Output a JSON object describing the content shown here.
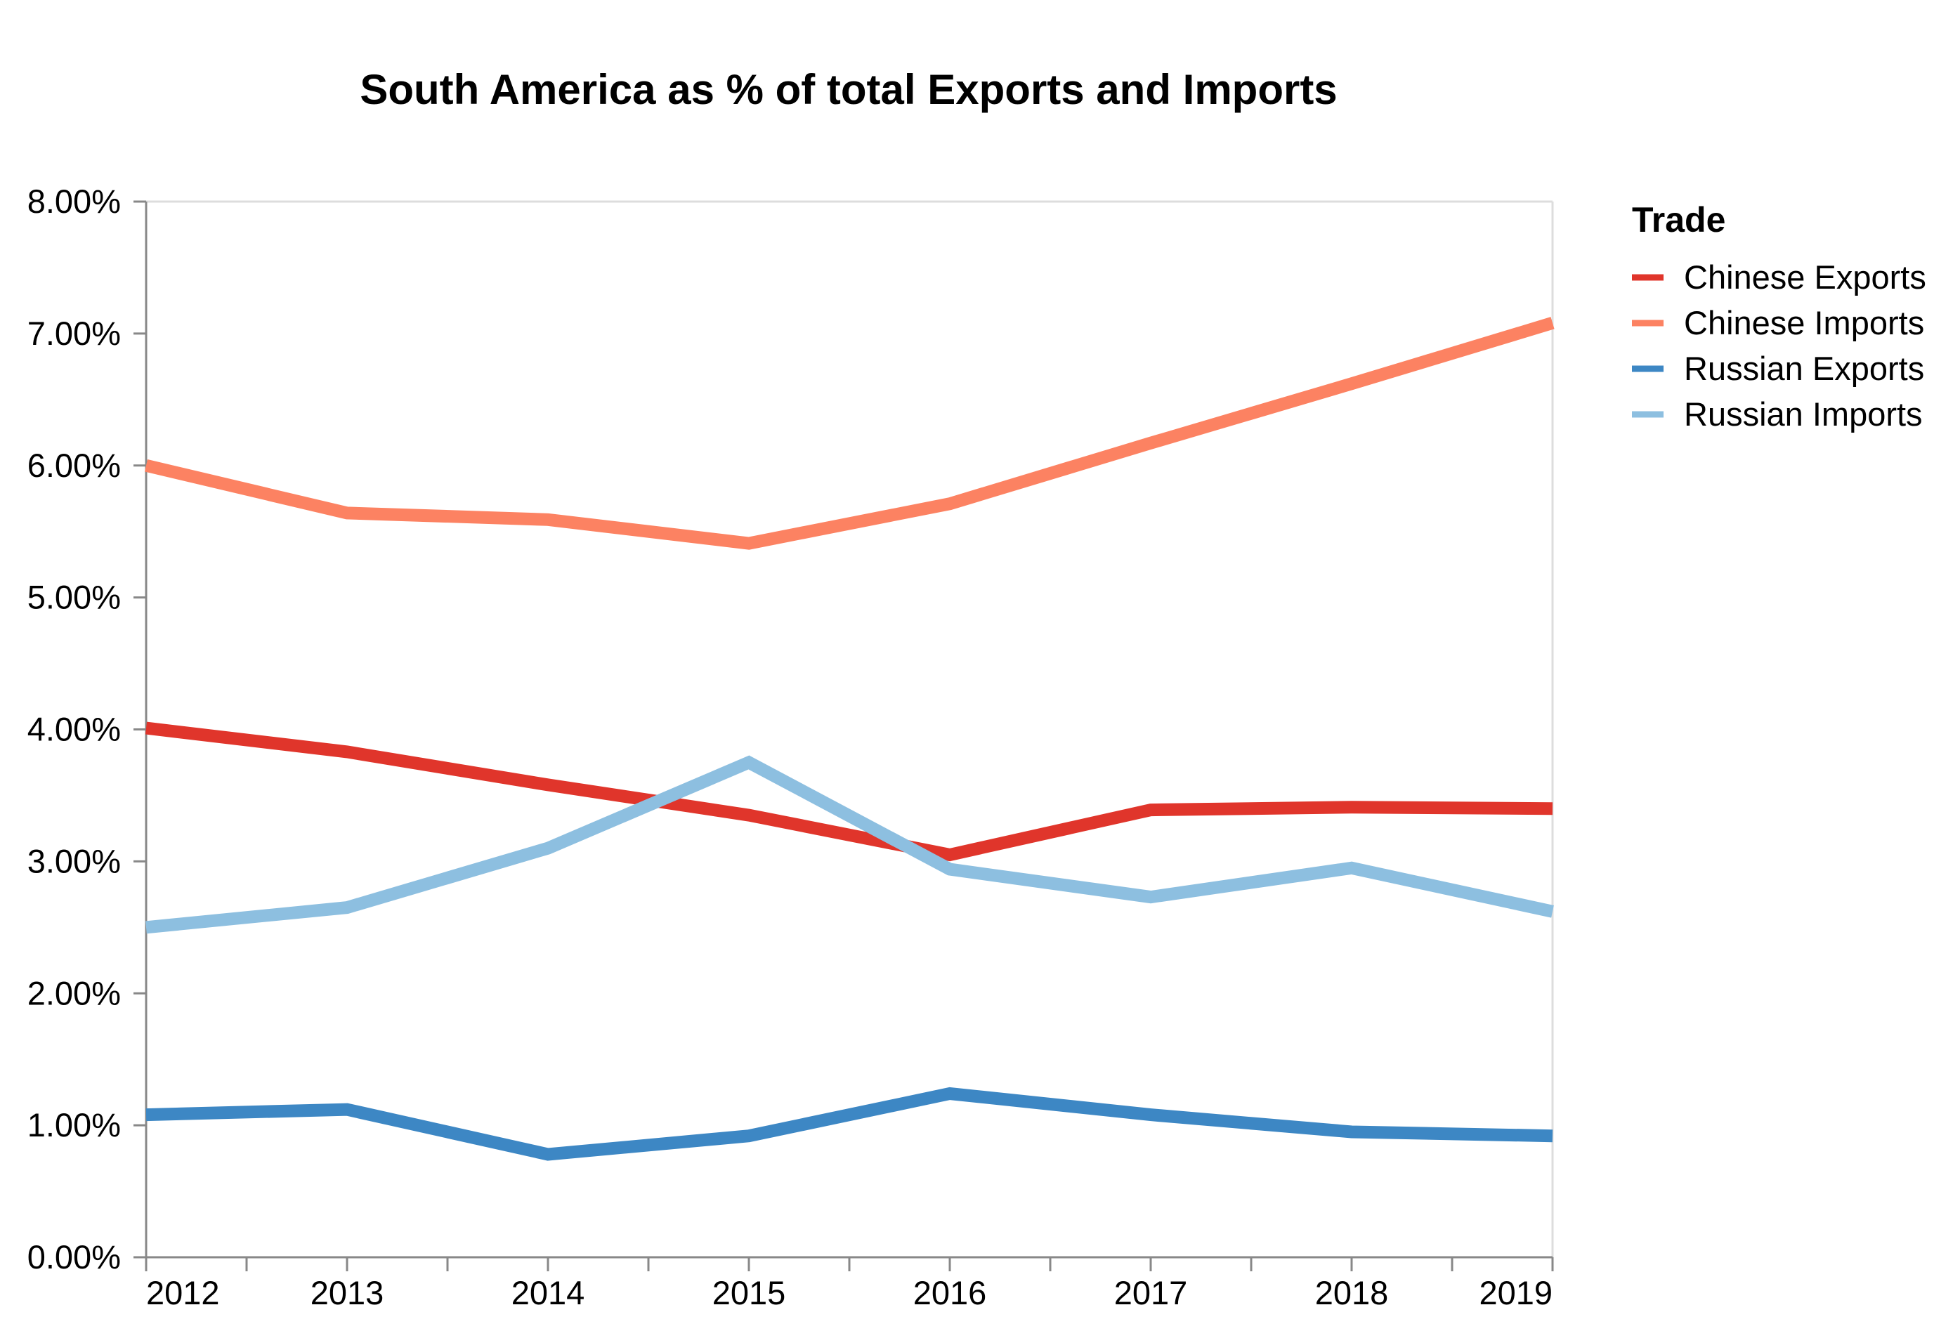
{
  "chart_data": {
    "type": "line",
    "title": "South America as % of total Exports and Imports",
    "x": [
      "2012",
      "2013",
      "2014",
      "2015",
      "2016",
      "2017",
      "2018",
      "2019"
    ],
    "ylim": [
      0,
      8
    ],
    "y_ticks": [
      "0.00%",
      "1.00%",
      "2.00%",
      "3.00%",
      "4.00%",
      "5.00%",
      "6.00%",
      "7.00%",
      "8.00%"
    ],
    "y_unit": "%",
    "grid": false,
    "legend_title": "Trade",
    "legend_position": "right",
    "series": [
      {
        "name": "Chinese Exports",
        "color": "#e0352b",
        "values": [
          4.01,
          3.83,
          3.58,
          3.35,
          3.05,
          3.39,
          3.41,
          3.4
        ]
      },
      {
        "name": "Chinese Imports",
        "color": "#fc8262",
        "values": [
          6.0,
          5.64,
          5.59,
          5.41,
          5.71,
          6.17,
          6.62,
          7.08
        ]
      },
      {
        "name": "Russian Exports",
        "color": "#3d87c4",
        "values": [
          1.08,
          1.12,
          0.78,
          0.92,
          1.24,
          1.08,
          0.95,
          0.92
        ]
      },
      {
        "name": "Russian Imports",
        "color": "#8dbfe0",
        "values": [
          2.5,
          2.65,
          3.1,
          3.75,
          2.94,
          2.73,
          2.95,
          2.62
        ]
      }
    ]
  }
}
